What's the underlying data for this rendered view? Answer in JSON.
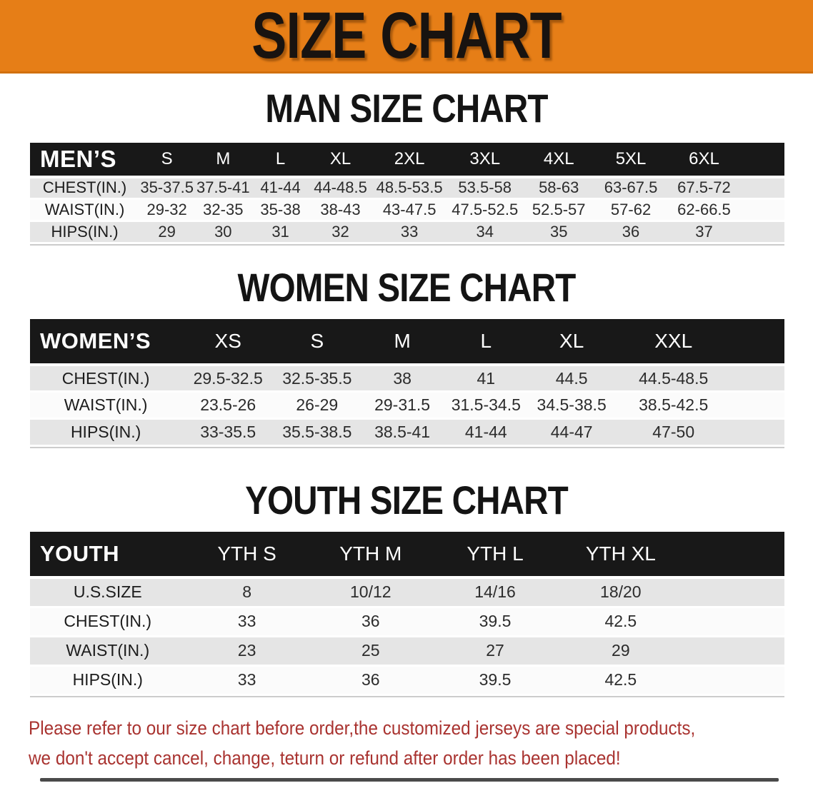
{
  "banner": {
    "title": "SIZE CHART",
    "bg_color": "#e67e17",
    "text_color": "#181310"
  },
  "sections": [
    {
      "heading": "MAN SIZE CHART",
      "table": {
        "header_label": "MEN’S",
        "columns": [
          "S",
          "M",
          "L",
          "XL",
          "2XL",
          "3XL",
          "4XL",
          "5XL",
          "6XL"
        ],
        "rows": [
          {
            "label": "CHEST(IN.)",
            "values": [
              "35-37.5",
              "37.5-41",
              "41-44",
              "44-48.5",
              "48.5-53.5",
              "53.5-58",
              "58-63",
              "63-67.5",
              "67.5-72"
            ]
          },
          {
            "label": "WAIST(IN.)",
            "values": [
              "29-32",
              "32-35",
              "35-38",
              "38-43",
              "43-47.5",
              "47.5-52.5",
              "52.5-57",
              "57-62",
              "62-66.5"
            ]
          },
          {
            "label": "HIPS(IN.)",
            "values": [
              "29",
              "30",
              "31",
              "32",
              "33",
              "34",
              "35",
              "36",
              "37"
            ]
          }
        ]
      }
    },
    {
      "heading": "WOMEN SIZE CHART",
      "table": {
        "header_label": "WOMEN’S",
        "columns": [
          "XS",
          "S",
          "M",
          "L",
          "XL",
          "XXL"
        ],
        "rows": [
          {
            "label": "CHEST(IN.)",
            "values": [
              "29.5-32.5",
              "32.5-35.5",
              "38",
              "41",
              "44.5",
              "44.5-48.5"
            ]
          },
          {
            "label": "WAIST(IN.)",
            "values": [
              "23.5-26",
              "26-29",
              "29-31.5",
              "31.5-34.5",
              "34.5-38.5",
              "38.5-42.5"
            ]
          },
          {
            "label": "HIPS(IN.)",
            "values": [
              "33-35.5",
              "35.5-38.5",
              "38.5-41",
              "41-44",
              "44-47",
              "47-50"
            ]
          }
        ]
      }
    },
    {
      "heading": "YOUTH SIZE CHART",
      "table": {
        "header_label": "YOUTH",
        "columns": [
          "YTH S",
          "YTH M",
          "YTH L",
          "YTH XL"
        ],
        "rows": [
          {
            "label": "U.S.SIZE",
            "values": [
              "8",
              "10/12",
              "14/16",
              "18/20"
            ]
          },
          {
            "label": "CHEST(IN.)",
            "values": [
              "33",
              "36",
              "39.5",
              "42.5"
            ]
          },
          {
            "label": "WAIST(IN.)",
            "values": [
              "23",
              "25",
              "27",
              "29"
            ]
          },
          {
            "label": "HIPS(IN.)",
            "values": [
              "33",
              "36",
              "39.5",
              "42.5"
            ]
          }
        ]
      }
    }
  ],
  "footer": {
    "line1": "Please refer to our size chart before order,the customized jerseys are special products,",
    "line2": "we don't accept cancel, change, teturn or refund after order has been placed!",
    "text_color": "#a93330"
  }
}
